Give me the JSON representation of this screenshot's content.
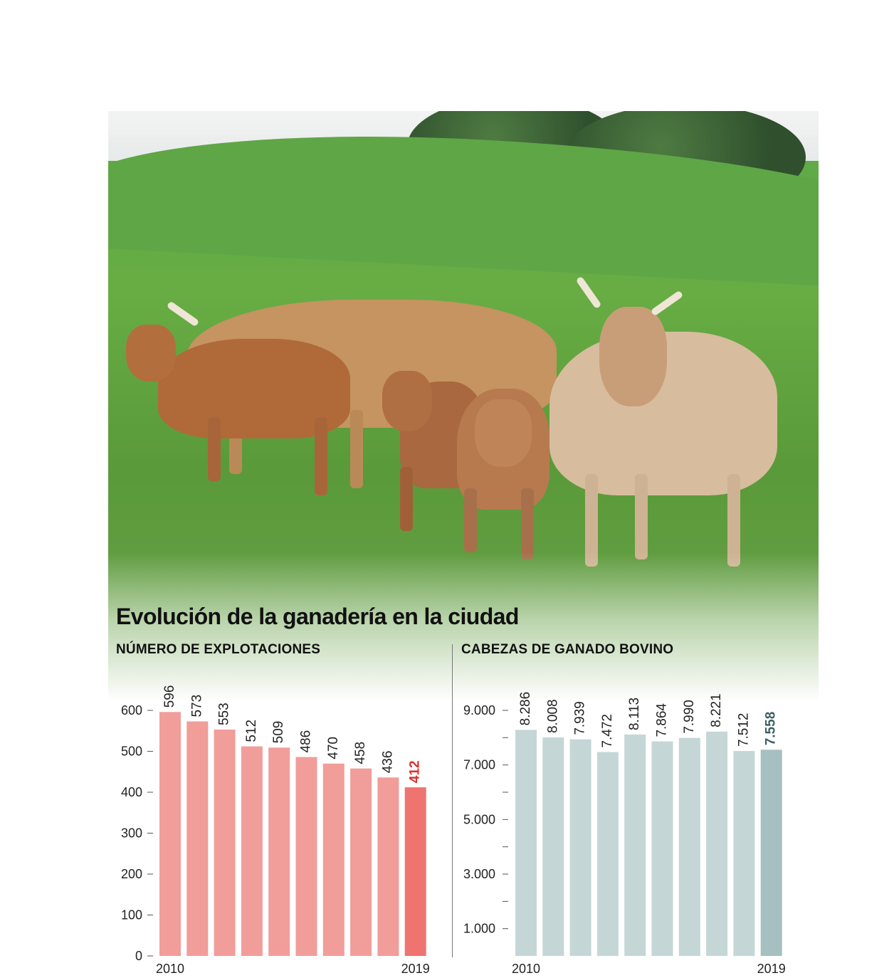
{
  "title": "Evolución de la ganadería en la ciudad",
  "colors": {
    "explotaciones_bar": "#f19d9a",
    "explotaciones_highlight": "#ef7470",
    "explotaciones_highlight_label": "#d9312e",
    "bovino_bar": "#c5d6d6",
    "bovino_highlight": "#a6bfc0",
    "bovino_highlight_label": "#3d5f64"
  },
  "chart_data": [
    {
      "type": "bar",
      "title": "NÚMERO DE EXPLOTACIONES",
      "categories": [
        "2010",
        "",
        "",
        "",
        "",
        "",
        "",
        "",
        "",
        "2019"
      ],
      "values": [
        596,
        573,
        553,
        512,
        509,
        486,
        470,
        458,
        436,
        412
      ],
      "value_labels": [
        "596",
        "573",
        "553",
        "512",
        "509",
        "486",
        "470",
        "458",
        "436",
        "412"
      ],
      "highlight_index": 9,
      "ylim": [
        0,
        600
      ],
      "yticks": [
        0,
        100,
        200,
        300,
        400,
        500,
        600
      ],
      "ytick_labels": [
        "0",
        "100",
        "200",
        "300",
        "400",
        "500",
        "600"
      ],
      "xlabel": "",
      "ylabel": "",
      "grid": false
    },
    {
      "type": "bar",
      "title": "CABEZAS DE GANADO BOVINO",
      "categories": [
        "2010",
        "",
        "",
        "",
        "",
        "",
        "",
        "",
        "",
        "2019"
      ],
      "values": [
        8286,
        8008,
        7939,
        7472,
        8113,
        7864,
        7990,
        8221,
        7512,
        7558
      ],
      "value_labels": [
        "8.286",
        "8.008",
        "7.939",
        "7.472",
        "8.113",
        "7.864",
        "7.990",
        "8.221",
        "7.512",
        "7.558"
      ],
      "highlight_index": 9,
      "ylim": [
        0,
        9000
      ],
      "yticks": [
        1000,
        2000,
        3000,
        4000,
        5000,
        6000,
        7000,
        8000,
        9000
      ],
      "ytick_labels": [
        "1.000",
        "",
        "3.000",
        "",
        "5.000",
        "",
        "7.000",
        "",
        "9.000"
      ],
      "xlabel": "",
      "ylabel": "",
      "grid": false
    }
  ]
}
